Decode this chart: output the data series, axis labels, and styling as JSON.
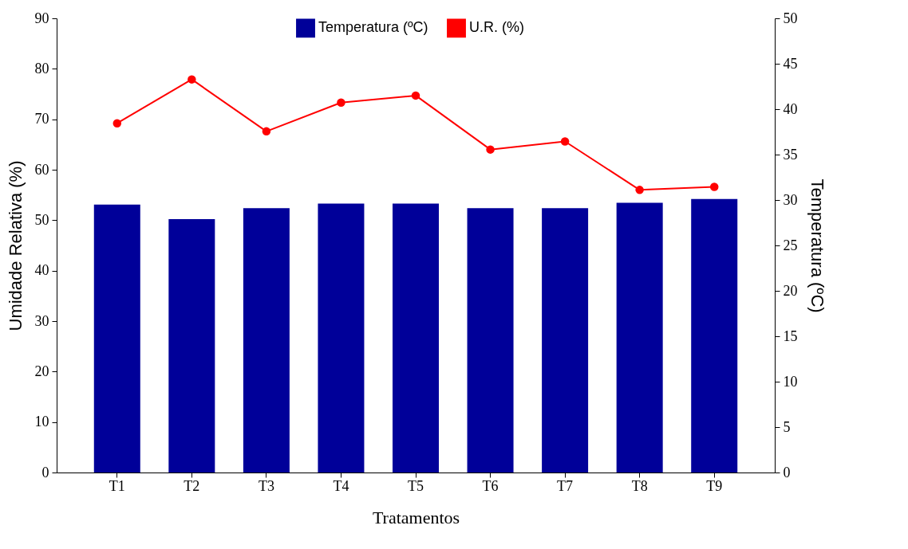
{
  "chart_data": {
    "type": "bar",
    "xlabel": "Tratamentos",
    "ylabel": "Umidade Relativa (%)",
    "y2label": "Temperatura (ºC)",
    "categories": [
      "T1",
      "T2",
      "T3",
      "T4",
      "T5",
      "T6",
      "T7",
      "T8",
      "T9"
    ],
    "series": [
      {
        "name": "Temperatura (ºC)",
        "axis": "y2",
        "color": "#000099",
        "values": [
          29.5,
          27.9,
          29.1,
          29.6,
          29.6,
          29.1,
          29.1,
          29.7,
          30.1
        ]
      },
      {
        "name": "U.R. (%)",
        "type": "line",
        "color": "#ff0000",
        "values": [
          69.2,
          77.9,
          67.6,
          73.3,
          74.7,
          64.0,
          65.6,
          56.0,
          56.6
        ]
      }
    ],
    "ylim": [
      0,
      90
    ],
    "yticks": [
      0,
      10,
      20,
      30,
      40,
      50,
      60,
      70,
      80,
      90
    ],
    "y2lim": [
      0,
      50
    ],
    "y2ticks": [
      0,
      5,
      10,
      15,
      20,
      25,
      30,
      35,
      40,
      45,
      50
    ],
    "legend": "top",
    "grid": false,
    "marker": "circle",
    "line_style": "solid"
  }
}
